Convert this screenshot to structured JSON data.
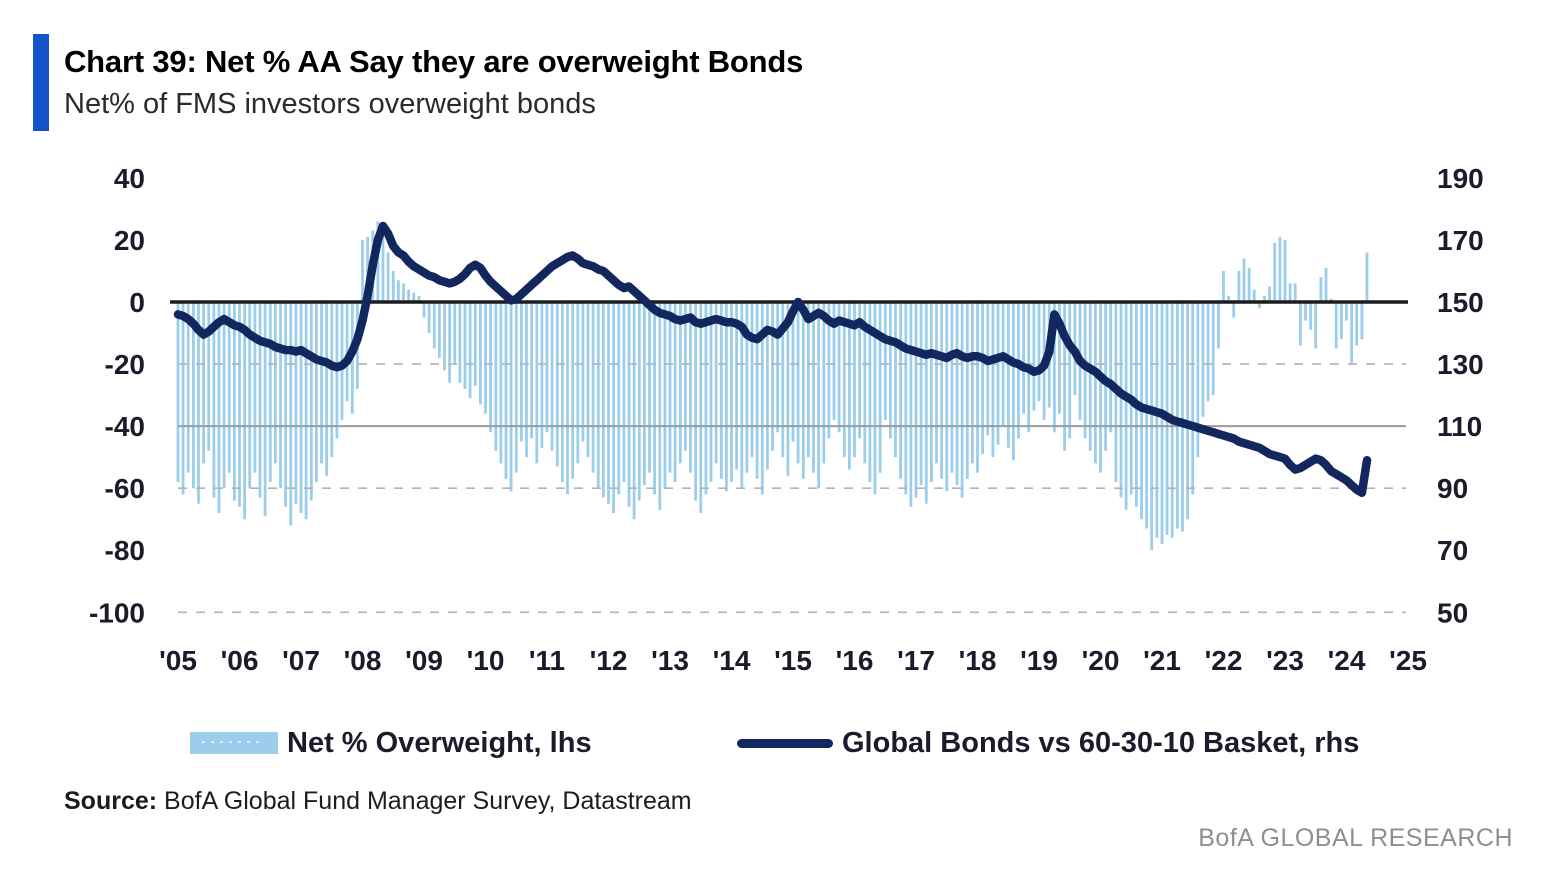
{
  "header": {
    "accent_color": "#1553C8",
    "title": "Chart 39: Net % AA Say they are overweight Bonds",
    "subtitle": "Net% of FMS investors overweight bonds"
  },
  "legend": [
    {
      "swatch": "bar",
      "color": "#9CCEEB",
      "label": "Net % Overweight, lhs"
    },
    {
      "swatch": "line",
      "color": "#12275E",
      "label": "Global Bonds vs 60-30-10 Basket, rhs"
    }
  ],
  "source": {
    "label": "Source:",
    "text": " BofA Global Fund Manager Survey, Datastream"
  },
  "footer": {
    "brand": "BofA GLOBAL RESEARCH"
  },
  "chart_data": {
    "type": "bar+line",
    "title": "Chart 39: Net % AA Say they are overweight Bonds",
    "subtitle": "Net% of FMS investors overweight bonds",
    "x_axis": {
      "start_year": 2005,
      "start_month": 1,
      "months_per_point": 1,
      "range": [
        2005,
        2025
      ],
      "tick_labels": [
        "'05",
        "'06",
        "'07",
        "'08",
        "'09",
        "'10",
        "'11",
        "'12",
        "'13",
        "'14",
        "'15",
        "'16",
        "'17",
        "'18",
        "'19",
        "'20",
        "'21",
        "'22",
        "'23",
        "'24",
        "'25"
      ]
    },
    "left_axis": {
      "ticks": [
        40,
        20,
        0,
        -20,
        -40,
        -60,
        -80,
        -100
      ],
      "range": [
        -100,
        40
      ]
    },
    "right_axis": {
      "ticks": [
        190,
        170,
        150,
        130,
        110,
        90,
        70,
        50
      ],
      "range": [
        50,
        190
      ]
    },
    "gridlines": [
      {
        "value": -20,
        "style": "dashed"
      },
      {
        "value": -40,
        "style": "solid"
      },
      {
        "value": -60,
        "style": "dashed"
      },
      {
        "value": -100,
        "style": "dashed"
      },
      {
        "value": 0,
        "style": "axis"
      }
    ],
    "series": [
      {
        "name": "Net % Overweight, lhs",
        "type": "bar",
        "axis": "left",
        "color": "#9CCEEB",
        "values": [
          -58,
          -62,
          -55,
          -60,
          -65,
          -52,
          -48,
          -63,
          -68,
          -60,
          -55,
          -64,
          -66,
          -70,
          -60,
          -55,
          -63,
          -69,
          -58,
          -52,
          -60,
          -66,
          -72,
          -65,
          -68,
          -70,
          -64,
          -58,
          -52,
          -56,
          -50,
          -44,
          -38,
          -32,
          -36,
          -28,
          20,
          21,
          23,
          26,
          25,
          16,
          10,
          7,
          6,
          4,
          3,
          2,
          -5,
          -10,
          -15,
          -18,
          -22,
          -26,
          -20,
          -26,
          -28,
          -31,
          -27,
          -33,
          -36,
          -42,
          -48,
          -52,
          -57,
          -61,
          -55,
          -45,
          -50,
          -44,
          -52,
          -47,
          -42,
          -48,
          -53,
          -58,
          -62,
          -57,
          -52,
          -45,
          -50,
          -55,
          -60,
          -63,
          -65,
          -68,
          -62,
          -58,
          -66,
          -70,
          -64,
          -59,
          -55,
          -62,
          -67,
          -60,
          -55,
          -58,
          -52,
          -48,
          -55,
          -64,
          -68,
          -62,
          -58,
          -52,
          -57,
          -61,
          -58,
          -54,
          -60,
          -55,
          -50,
          -57,
          -62,
          -54,
          -48,
          -42,
          -50,
          -56,
          -45,
          -52,
          -57,
          -50,
          -55,
          -60,
          -52,
          -44,
          -38,
          -42,
          -50,
          -54,
          -50,
          -44,
          -52,
          -58,
          -62,
          -55,
          -38,
          -44,
          -50,
          -57,
          -62,
          -66,
          -63,
          -59,
          -65,
          -58,
          -52,
          -57,
          -61,
          -55,
          -59,
          -63,
          -57,
          -52,
          -55,
          -49,
          -43,
          -50,
          -46,
          -40,
          -47,
          -51,
          -44,
          -36,
          -42,
          -35,
          -32,
          -38,
          -34,
          -42,
          -36,
          -48,
          -44,
          -30,
          -38,
          -44,
          -48,
          -52,
          -55,
          -48,
          -42,
          -58,
          -63,
          -67,
          -62,
          -66,
          -70,
          -73,
          -80,
          -76,
          -78,
          -75,
          -76,
          -73,
          -74,
          -70,
          -62,
          -50,
          -37,
          -32,
          -30,
          -15,
          10,
          2,
          -5,
          10,
          14,
          11,
          4,
          -2,
          2,
          5,
          19,
          21,
          20,
          6,
          6,
          -14,
          -6,
          -9,
          -15,
          8,
          11,
          1,
          -15,
          -12,
          -6,
          -20,
          -14,
          -12,
          16
        ]
      },
      {
        "name": "Global Bonds vs 60-30-10 Basket, rhs",
        "type": "line",
        "axis": "right",
        "color": "#12275E",
        "values": [
          146,
          145.5,
          144.5,
          143,
          141,
          139.5,
          140.5,
          142,
          143.5,
          144.5,
          143.5,
          142.5,
          142,
          141,
          139.5,
          138.5,
          137.5,
          137,
          136.5,
          135.5,
          135,
          134.5,
          134.5,
          134,
          134.5,
          133.5,
          132.5,
          131.5,
          131,
          130.5,
          129.5,
          129,
          129.5,
          131,
          134,
          138,
          144,
          152,
          162,
          170,
          174.5,
          172,
          168,
          166,
          165,
          163,
          161.5,
          160.5,
          159.5,
          158.5,
          158,
          157,
          156.5,
          156,
          156.5,
          157.5,
          159,
          161,
          162,
          161,
          158.5,
          156.5,
          155,
          153.5,
          152,
          150.5,
          151,
          152.5,
          154,
          155.5,
          157,
          158.5,
          160,
          161.5,
          162.5,
          163.5,
          164.5,
          165,
          164,
          162.5,
          162,
          161.5,
          160.5,
          160,
          158.5,
          157,
          155.5,
          154.5,
          155,
          153.5,
          152,
          150.5,
          149,
          147.5,
          146.5,
          146,
          145.5,
          144.5,
          144,
          144.5,
          145,
          143.5,
          143,
          143.5,
          144,
          144.5,
          144,
          143.5,
          143.5,
          143,
          142,
          139.5,
          138.5,
          138,
          139.5,
          141,
          140.5,
          139.5,
          141.5,
          143.5,
          147,
          150,
          147.5,
          144.5,
          145.5,
          146.5,
          145.5,
          144,
          143,
          144,
          143.5,
          143,
          142.5,
          143.5,
          142,
          141,
          140,
          139,
          138,
          137.5,
          137,
          136,
          135,
          134.5,
          134,
          133.5,
          133,
          133.5,
          133,
          132.5,
          132,
          133,
          133.5,
          132.5,
          132,
          132.5,
          132.5,
          132,
          131,
          131.5,
          132,
          132.5,
          131.5,
          130.5,
          130,
          129,
          128.5,
          127.5,
          128,
          129.5,
          134,
          146,
          143,
          139,
          136,
          134,
          131,
          129.5,
          128.5,
          127.5,
          126,
          124.5,
          123.5,
          122,
          120.5,
          119.5,
          118.5,
          117,
          116,
          115.5,
          115,
          114.5,
          114,
          113,
          112,
          111.5,
          111,
          110.5,
          110,
          109.5,
          109,
          108.5,
          108,
          107.5,
          107,
          106.5,
          106,
          105,
          104.5,
          104,
          103.5,
          103,
          102,
          101,
          100.5,
          100,
          99.5,
          97.5,
          96,
          96.5,
          97.5,
          98.5,
          99.5,
          99,
          97.5,
          95.5,
          94.5,
          93.5,
          92.5,
          91,
          89.5,
          88.5,
          99
        ]
      }
    ]
  }
}
